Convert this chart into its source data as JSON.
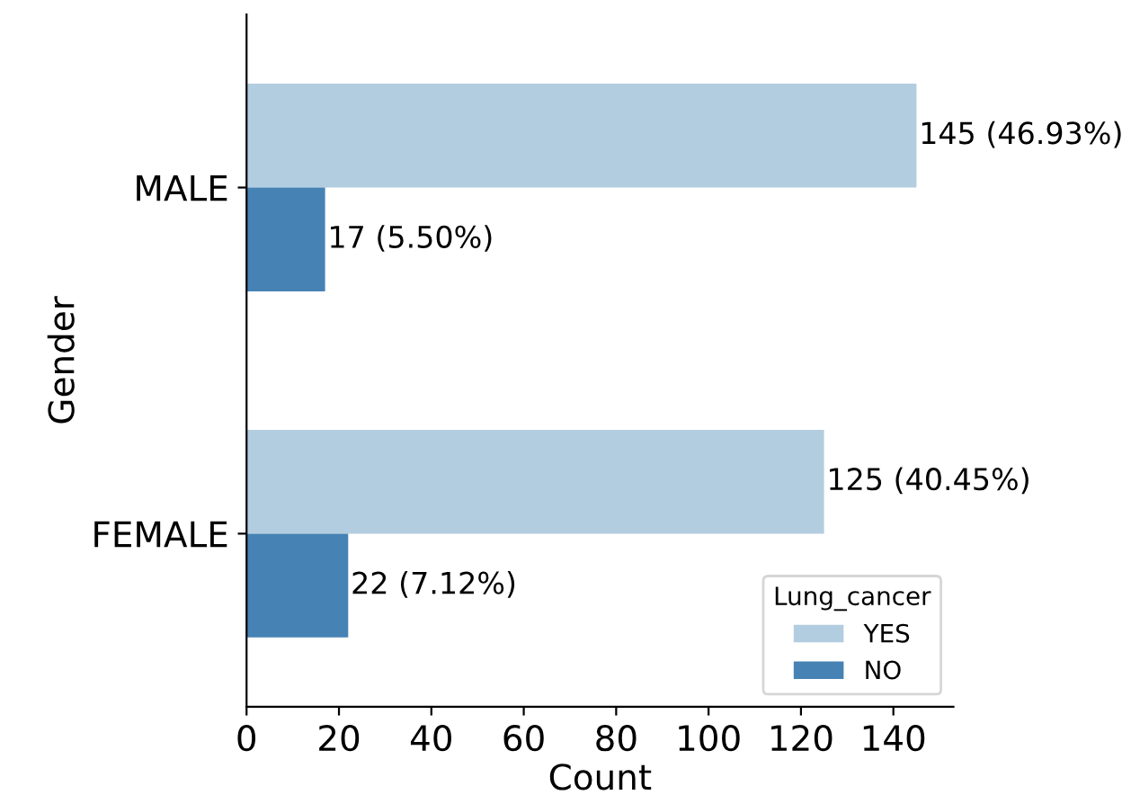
{
  "chart_data": {
    "type": "bar",
    "orientation": "horizontal",
    "xlabel": "Count",
    "ylabel": "Gender",
    "categories": [
      "MALE",
      "FEMALE"
    ],
    "series": [
      {
        "name": "YES",
        "color": "#b3cde0",
        "values": [
          145,
          125
        ],
        "value_labels": [
          "145 (46.93%)",
          "125 (40.45%)"
        ]
      },
      {
        "name": "NO",
        "color": "#4682b4",
        "values": [
          17,
          22
        ],
        "value_labels": [
          "17 (5.50%)",
          "22 (7.12%)"
        ]
      }
    ],
    "xlim": [
      0,
      153
    ],
    "xticks": [
      0,
      20,
      40,
      60,
      80,
      100,
      120,
      140
    ],
    "legend": "bottom right",
    "legend_title": "Lung_cancer",
    "grid": false
  }
}
